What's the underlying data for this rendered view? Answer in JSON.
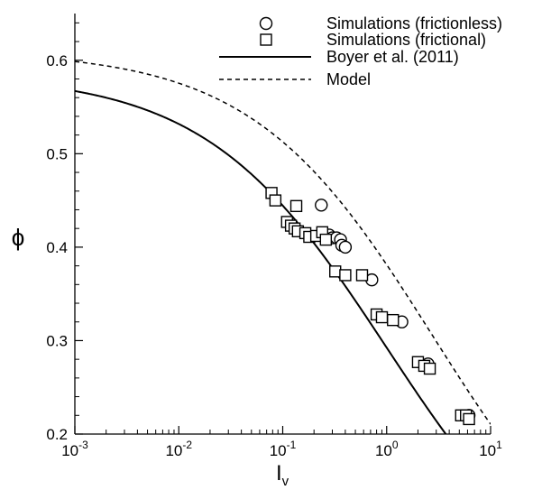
{
  "chart_data": {
    "type": "scatter",
    "title": "",
    "xlabel": "I",
    "xlabel_subscript": "v",
    "ylabel": "ϕ",
    "x_scale": "log",
    "xlim": [
      0.001,
      10
    ],
    "ylim": [
      0.2,
      0.65
    ],
    "x_ticks": [
      {
        "value": 0.001,
        "base": "10",
        "exp": "-3"
      },
      {
        "value": 0.01,
        "base": "10",
        "exp": "-2"
      },
      {
        "value": 0.1,
        "base": "10",
        "exp": "-1"
      },
      {
        "value": 1,
        "base": "10",
        "exp": "0"
      },
      {
        "value": 10,
        "base": "10",
        "exp": "1"
      }
    ],
    "y_ticks": [
      {
        "value": 0.2,
        "label": "0.2"
      },
      {
        "value": 0.3,
        "label": "0.3"
      },
      {
        "value": 0.4,
        "label": "0.4"
      },
      {
        "value": 0.5,
        "label": "0.5"
      },
      {
        "value": 0.6,
        "label": "0.6"
      }
    ],
    "grid": false,
    "legend_position": "top-right",
    "series": [
      {
        "name": "Simulations (frictionless)",
        "kind": "scatter",
        "marker": "circle",
        "points": [
          [
            0.235,
            0.445
          ],
          [
            0.28,
            0.413
          ],
          [
            0.3,
            0.41
          ],
          [
            0.33,
            0.41
          ],
          [
            0.36,
            0.408
          ],
          [
            0.37,
            0.402
          ],
          [
            0.4,
            0.4
          ],
          [
            0.72,
            0.365
          ],
          [
            1.4,
            0.32
          ],
          [
            2.5,
            0.275
          ],
          [
            6.2,
            0.22
          ]
        ]
      },
      {
        "name": "Simulations (frictional)",
        "kind": "scatter",
        "marker": "square",
        "points": [
          [
            0.078,
            0.458
          ],
          [
            0.085,
            0.45
          ],
          [
            0.11,
            0.427
          ],
          [
            0.12,
            0.423
          ],
          [
            0.13,
            0.42
          ],
          [
            0.14,
            0.417
          ],
          [
            0.135,
            0.444
          ],
          [
            0.165,
            0.415
          ],
          [
            0.18,
            0.411
          ],
          [
            0.21,
            0.412
          ],
          [
            0.24,
            0.416
          ],
          [
            0.26,
            0.408
          ],
          [
            0.32,
            0.374
          ],
          [
            0.4,
            0.37
          ],
          [
            0.58,
            0.37
          ],
          [
            0.8,
            0.328
          ],
          [
            0.9,
            0.325
          ],
          [
            1.15,
            0.322
          ],
          [
            2.0,
            0.277
          ],
          [
            2.3,
            0.273
          ],
          [
            2.6,
            0.27
          ],
          [
            5.2,
            0.22
          ],
          [
            5.8,
            0.22
          ],
          [
            6.2,
            0.216
          ]
        ]
      },
      {
        "name": "Boyer et al. (2011)",
        "kind": "line",
        "dash": "solid",
        "formula": "phi_m / (1 + sqrt(Iv))",
        "phi_m": 0.585
      },
      {
        "name": "Model",
        "kind": "line",
        "dash": "dashed",
        "formula": "phi_m / (1 + a*sqrt(Iv))",
        "phi_m": 0.61,
        "a": 0.6
      }
    ]
  }
}
